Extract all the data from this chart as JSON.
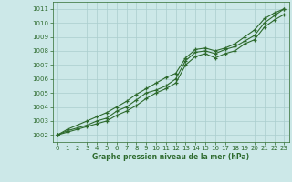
{
  "x": [
    0,
    1,
    2,
    3,
    4,
    5,
    6,
    7,
    8,
    9,
    10,
    11,
    12,
    13,
    14,
    15,
    16,
    17,
    18,
    19,
    20,
    21,
    22,
    23
  ],
  "line_main": [
    1002.0,
    1002.3,
    1002.5,
    1002.7,
    1003.0,
    1003.2,
    1003.7,
    1004.0,
    1004.5,
    1005.0,
    1005.2,
    1005.5,
    1006.0,
    1007.3,
    1007.9,
    1008.0,
    1007.8,
    1008.1,
    1008.3,
    1008.7,
    1009.1,
    1010.0,
    1010.5,
    1011.0
  ],
  "line_high": [
    1002.0,
    1002.4,
    1002.7,
    1003.0,
    1003.3,
    1003.6,
    1004.0,
    1004.4,
    1004.9,
    1005.3,
    1005.7,
    1006.1,
    1006.4,
    1007.5,
    1008.1,
    1008.2,
    1008.0,
    1008.2,
    1008.5,
    1009.0,
    1009.5,
    1010.3,
    1010.7,
    1011.0
  ],
  "line_low": [
    1002.0,
    1002.2,
    1002.4,
    1002.6,
    1002.8,
    1003.0,
    1003.4,
    1003.7,
    1004.1,
    1004.6,
    1005.0,
    1005.3,
    1005.7,
    1007.0,
    1007.6,
    1007.8,
    1007.5,
    1007.8,
    1008.0,
    1008.5,
    1008.8,
    1009.7,
    1010.2,
    1010.6
  ],
  "line_color": "#2d6a2d",
  "bg_color": "#cce8e8",
  "grid_color": "#aacece",
  "axis_color": "#2d6a2d",
  "xlabel": "Graphe pression niveau de la mer (hPa)",
  "ylim": [
    1001.5,
    1011.5
  ],
  "xlim": [
    -0.5,
    23.5
  ],
  "yticks": [
    1002,
    1003,
    1004,
    1005,
    1006,
    1007,
    1008,
    1009,
    1010,
    1011
  ],
  "xticks": [
    0,
    1,
    2,
    3,
    4,
    5,
    6,
    7,
    8,
    9,
    10,
    11,
    12,
    13,
    14,
    15,
    16,
    17,
    18,
    19,
    20,
    21,
    22,
    23
  ]
}
